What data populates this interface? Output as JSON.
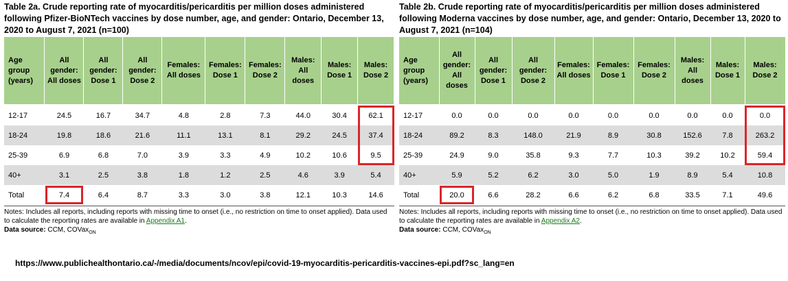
{
  "tableA": {
    "title": "Table 2a. Crude reporting rate of myocarditis/pericarditis per million doses administered following Pfizer-BioNTech vaccines by dose number, age, and gender: Ontario, December 13, 2020 to August 7, 2021 (n=100)",
    "headers": [
      "Age group (years)",
      "All gender: All doses",
      "All gender: Dose 1",
      "All gender: Dose 2",
      "Females: All doses",
      "Females: Dose 1",
      "Females: Dose 2",
      "Males: All doses",
      "Males: Dose 1",
      "Males: Dose 2"
    ],
    "rows": [
      [
        "12-17",
        "24.5",
        "16.7",
        "34.7",
        "4.8",
        "2.8",
        "7.3",
        "44.0",
        "30.4",
        "62.1"
      ],
      [
        "18-24",
        "19.8",
        "18.6",
        "21.6",
        "11.1",
        "13.1",
        "8.1",
        "29.2",
        "24.5",
        "37.4"
      ],
      [
        "25-39",
        "6.9",
        "6.8",
        "7.0",
        "3.9",
        "3.3",
        "4.9",
        "10.2",
        "10.6",
        "9.5"
      ],
      [
        "40+",
        "3.1",
        "2.5",
        "3.8",
        "1.8",
        "1.2",
        "2.5",
        "4.6",
        "3.9",
        "5.4"
      ],
      [
        "Total",
        "7.4",
        "6.4",
        "8.7",
        "3.3",
        "3.0",
        "3.8",
        "12.1",
        "10.3",
        "14.6"
      ]
    ],
    "notes": "Notes: Includes all reports, including reports with missing time to onset (i.e., no restriction on time to onset applied). Data used to calculate the reporting rates are available in ",
    "appendix": "Appendix A1",
    "source_label": "Data source:",
    "source": " CCM, COVax",
    "source_sub": "ON"
  },
  "tableB": {
    "title": "Table 2b. Crude reporting rate of myocarditis/pericarditis per million doses administered following Moderna vaccines by dose number, age, and gender: Ontario, December 13, 2020 to August 7, 2021 (n=104)",
    "headers": [
      "Age group (years)",
      "All gender: All doses",
      "All gender: Dose 1",
      "All gender: Dose 2",
      "Females: All doses",
      "Females: Dose 1",
      "Females: Dose 2",
      "Males: All doses",
      "Males: Dose 1",
      "Males: Dose 2"
    ],
    "rows": [
      [
        "12-17",
        "0.0",
        "0.0",
        "0.0",
        "0.0",
        "0.0",
        "0.0",
        "0.0",
        "0.0",
        "0.0"
      ],
      [
        "18-24",
        "89.2",
        "8.3",
        "148.0",
        "21.9",
        "8.9",
        "30.8",
        "152.6",
        "7.8",
        "263.2"
      ],
      [
        "25-39",
        "24.9",
        "9.0",
        "35.8",
        "9.3",
        "7.7",
        "10.3",
        "39.2",
        "10.2",
        "59.4"
      ],
      [
        "40+",
        "5.9",
        "5.2",
        "6.2",
        "3.0",
        "5.0",
        "1.9",
        "8.9",
        "5.4",
        "10.8"
      ],
      [
        "Total",
        "20.0",
        "6.6",
        "28.2",
        "6.6",
        "6.2",
        "6.8",
        "33.5",
        "7.1",
        "49.6"
      ]
    ],
    "notes": "Notes: Includes all reports, including reports with missing time to onset (i.e., no restriction on time to onset applied). Data used to calculate the reporting rates are available in ",
    "appendix": "Appendix A2",
    "source_label": "Data source:",
    "source": " CCM, COVax",
    "source_sub": "ON"
  },
  "url": "https://www.publichealthontario.ca/-/media/documents/ncov/epi/covid-19-myocarditis-pericarditis-vaccines-epi.pdf?sc_lang=en",
  "colors": {
    "header_bg": "#a8d08d",
    "stripe": "#dcdcdc",
    "highlight": "#d9262a",
    "link": "#1a7a1a"
  }
}
